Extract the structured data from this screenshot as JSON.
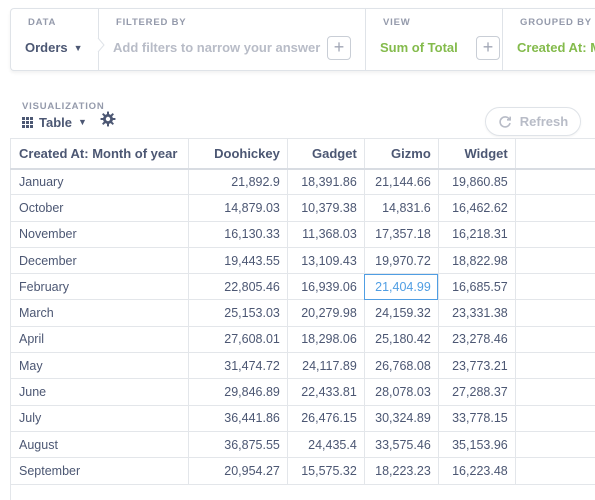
{
  "query_builder": {
    "data": {
      "label": "DATA",
      "value": "Orders"
    },
    "filtered_by": {
      "label": "FILTERED BY",
      "placeholder": "Add filters to narrow your answer"
    },
    "view": {
      "label": "VIEW",
      "value": "Sum of Total"
    },
    "grouped_by": {
      "label": "GROUPED BY",
      "value": "Created At: Month of year"
    }
  },
  "visualization": {
    "label": "VISUALIZATION",
    "type": "Table",
    "refresh_label": "Refresh"
  },
  "colors": {
    "accent": "#509ee3",
    "green": "#84bb4c",
    "text": "#4c5773",
    "muted": "#949aab"
  },
  "table": {
    "columns": [
      "Created At: Month of year",
      "Doohickey",
      "Gadget",
      "Gizmo",
      "Widget"
    ],
    "rows": [
      [
        "January",
        "21,892.9",
        "18,391.86",
        "21,144.66",
        "19,860.85"
      ],
      [
        "October",
        "14,879.03",
        "10,379.38",
        "14,831.6",
        "16,462.62"
      ],
      [
        "November",
        "16,130.33",
        "11,368.03",
        "17,357.18",
        "16,218.31"
      ],
      [
        "December",
        "19,443.55",
        "13,109.43",
        "19,970.72",
        "18,822.98"
      ],
      [
        "February",
        "22,805.46",
        "16,939.06",
        "21,404.99",
        "16,685.57"
      ],
      [
        "March",
        "25,153.03",
        "20,279.98",
        "24,159.32",
        "23,331.38"
      ],
      [
        "April",
        "27,608.01",
        "18,298.06",
        "25,180.42",
        "23,278.46"
      ],
      [
        "May",
        "31,474.72",
        "24,117.89",
        "26,768.08",
        "23,773.21"
      ],
      [
        "June",
        "29,846.89",
        "22,433.81",
        "28,078.03",
        "27,288.37"
      ],
      [
        "July",
        "36,441.86",
        "26,476.15",
        "30,324.89",
        "33,778.15"
      ],
      [
        "August",
        "36,875.55",
        "24,435.4",
        "33,575.46",
        "35,153.96"
      ],
      [
        "September",
        "20,954.27",
        "15,575.32",
        "18,223.23",
        "16,223.48"
      ]
    ],
    "highlighted_cell": {
      "row": 4,
      "col": 3
    }
  }
}
